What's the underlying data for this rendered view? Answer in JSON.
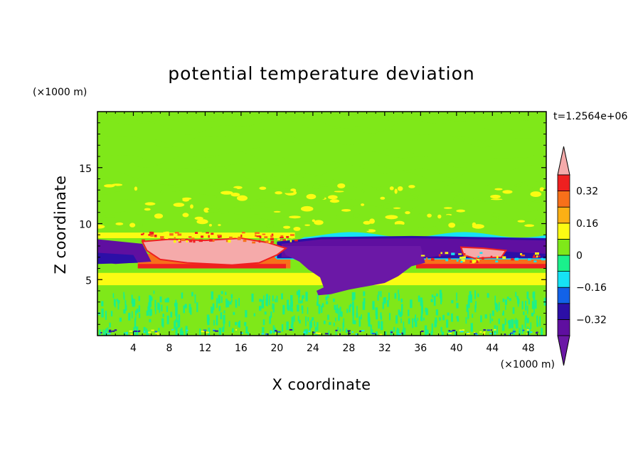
{
  "chart_data": {
    "type": "heatmap",
    "title": "potential temperature deviation",
    "xlabel": "X coordinate",
    "ylabel": "Z coordinate",
    "x_unit": "(×1000 m)",
    "y_unit": "(×1000 m)",
    "time_label": "t=1.2564e+06",
    "xlim": [
      0,
      50
    ],
    "ylim": [
      0,
      20
    ],
    "x_ticks": [
      4,
      8,
      12,
      16,
      20,
      24,
      28,
      32,
      36,
      40,
      44,
      48
    ],
    "y_ticks": [
      5,
      10,
      15
    ],
    "colorbar": {
      "levels": [
        -0.4,
        -0.32,
        -0.24,
        -0.16,
        -0.08,
        0,
        0.08,
        0.16,
        0.24,
        0.32,
        0.4
      ],
      "labels": [
        "-0.32",
        "-0.16",
        "0",
        "0.16",
        "0.32"
      ],
      "label_values": [
        -0.32,
        -0.16,
        0,
        0.16,
        0.32
      ],
      "colors": [
        "#5f0fa0",
        "#2c0fa7",
        "#1262e8",
        "#16e2f5",
        "#1af08c",
        "#7fe819",
        "#fbfb13",
        "#fcb015",
        "#f7701a",
        "#ef2020"
      ],
      "under_color": "#6b18a6",
      "over_color": "#f5aaaa",
      "extend": "both"
    },
    "background_color": "#7fe819",
    "regions": [
      {
        "name": "surface-layer",
        "value_range": [
          -0.08,
          0.08
        ],
        "xlim": [
          0,
          50
        ],
        "zlim": [
          0,
          4.5
        ]
      },
      {
        "name": "warm-band-lower",
        "value_range": [
          0.08,
          0.16
        ],
        "xlim": [
          0,
          50
        ],
        "zlim": [
          4.5,
          6.2
        ]
      },
      {
        "name": "warm-layer-left",
        "value_range": [
          0.24,
          0.32
        ],
        "xlim": [
          4.5,
          22
        ],
        "zlim": [
          6.2,
          7.5
        ]
      },
      {
        "name": "warm-anomaly-max",
        "value": 0.45,
        "xlim": [
          5,
          21
        ],
        "zlim": [
          6.5,
          8.6
        ]
      },
      {
        "name": "cold-pool-core",
        "value": -0.45,
        "xlim": [
          24,
          35
        ],
        "zlim": [
          3.5,
          8.5
        ]
      },
      {
        "name": "cold-layer",
        "value_range": [
          -0.4,
          -0.32
        ],
        "xlim": [
          20,
          50
        ],
        "zlim": [
          6.5,
          9
        ]
      },
      {
        "name": "cold-edge-left",
        "value_range": [
          -0.32,
          -0.24
        ],
        "xlim": [
          0,
          4
        ],
        "zlim": [
          7,
          8.5
        ]
      },
      {
        "name": "warm-anomaly-right",
        "value": 0.45,
        "xlim": [
          41,
          45.5
        ],
        "zlim": [
          6.8,
          7.8
        ]
      }
    ]
  }
}
